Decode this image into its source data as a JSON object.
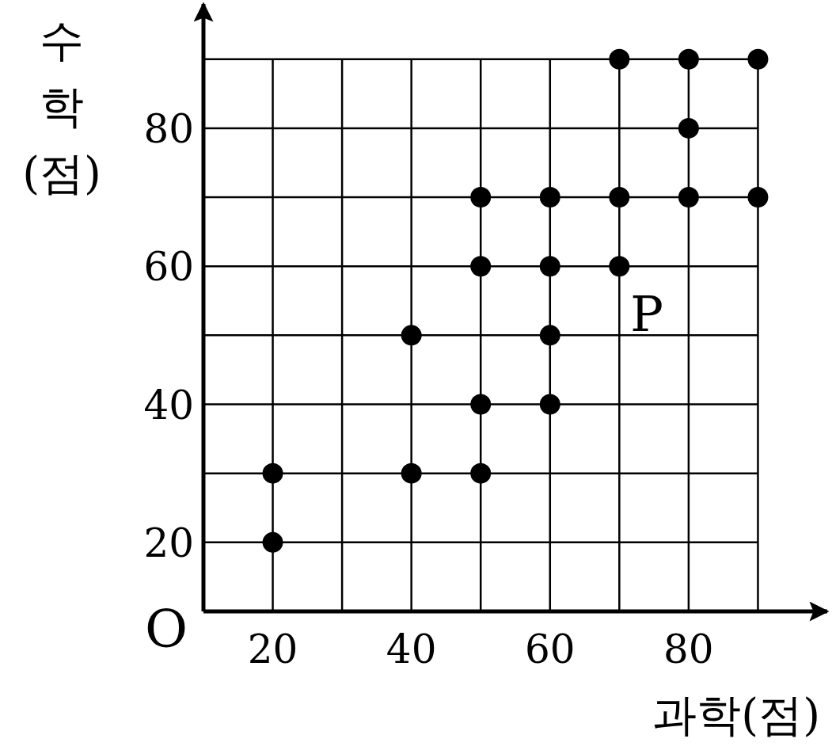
{
  "chart_data": {
    "type": "scatter",
    "xlabel": "과학(점)",
    "ylabel": "수\n학\n(점)",
    "xlim": [
      10,
      100
    ],
    "ylim": [
      10,
      98
    ],
    "xticks": [
      20,
      {
        "value": 30,
        "label": null
      },
      40,
      {
        "value": 50,
        "label": null
      },
      60,
      {
        "value": 70,
        "label": null
      },
      80,
      {
        "value": 90,
        "label": null
      }
    ],
    "yticks": [
      20,
      {
        "value": 30,
        "label": null
      },
      40,
      {
        "value": 50,
        "label": null
      },
      60,
      {
        "value": 70,
        "label": null
      },
      80,
      {
        "value": 90,
        "label": null
      }
    ],
    "grid": true,
    "marker": "circle",
    "series": [
      {
        "color": "#000000",
        "x": [
          20,
          20,
          40,
          40,
          50,
          50,
          50,
          50,
          60,
          60,
          60,
          60,
          70,
          70,
          70,
          80,
          80,
          80,
          90,
          90
        ],
        "values": [
          30,
          20,
          50,
          30,
          70,
          60,
          40,
          30,
          70,
          60,
          50,
          40,
          90,
          70,
          60,
          90,
          80,
          70,
          90,
          70
        ]
      }
    ],
    "annotations": [
      {
        "text": "P",
        "x": 70,
        "y": 60
      },
      "O"
    ]
  }
}
